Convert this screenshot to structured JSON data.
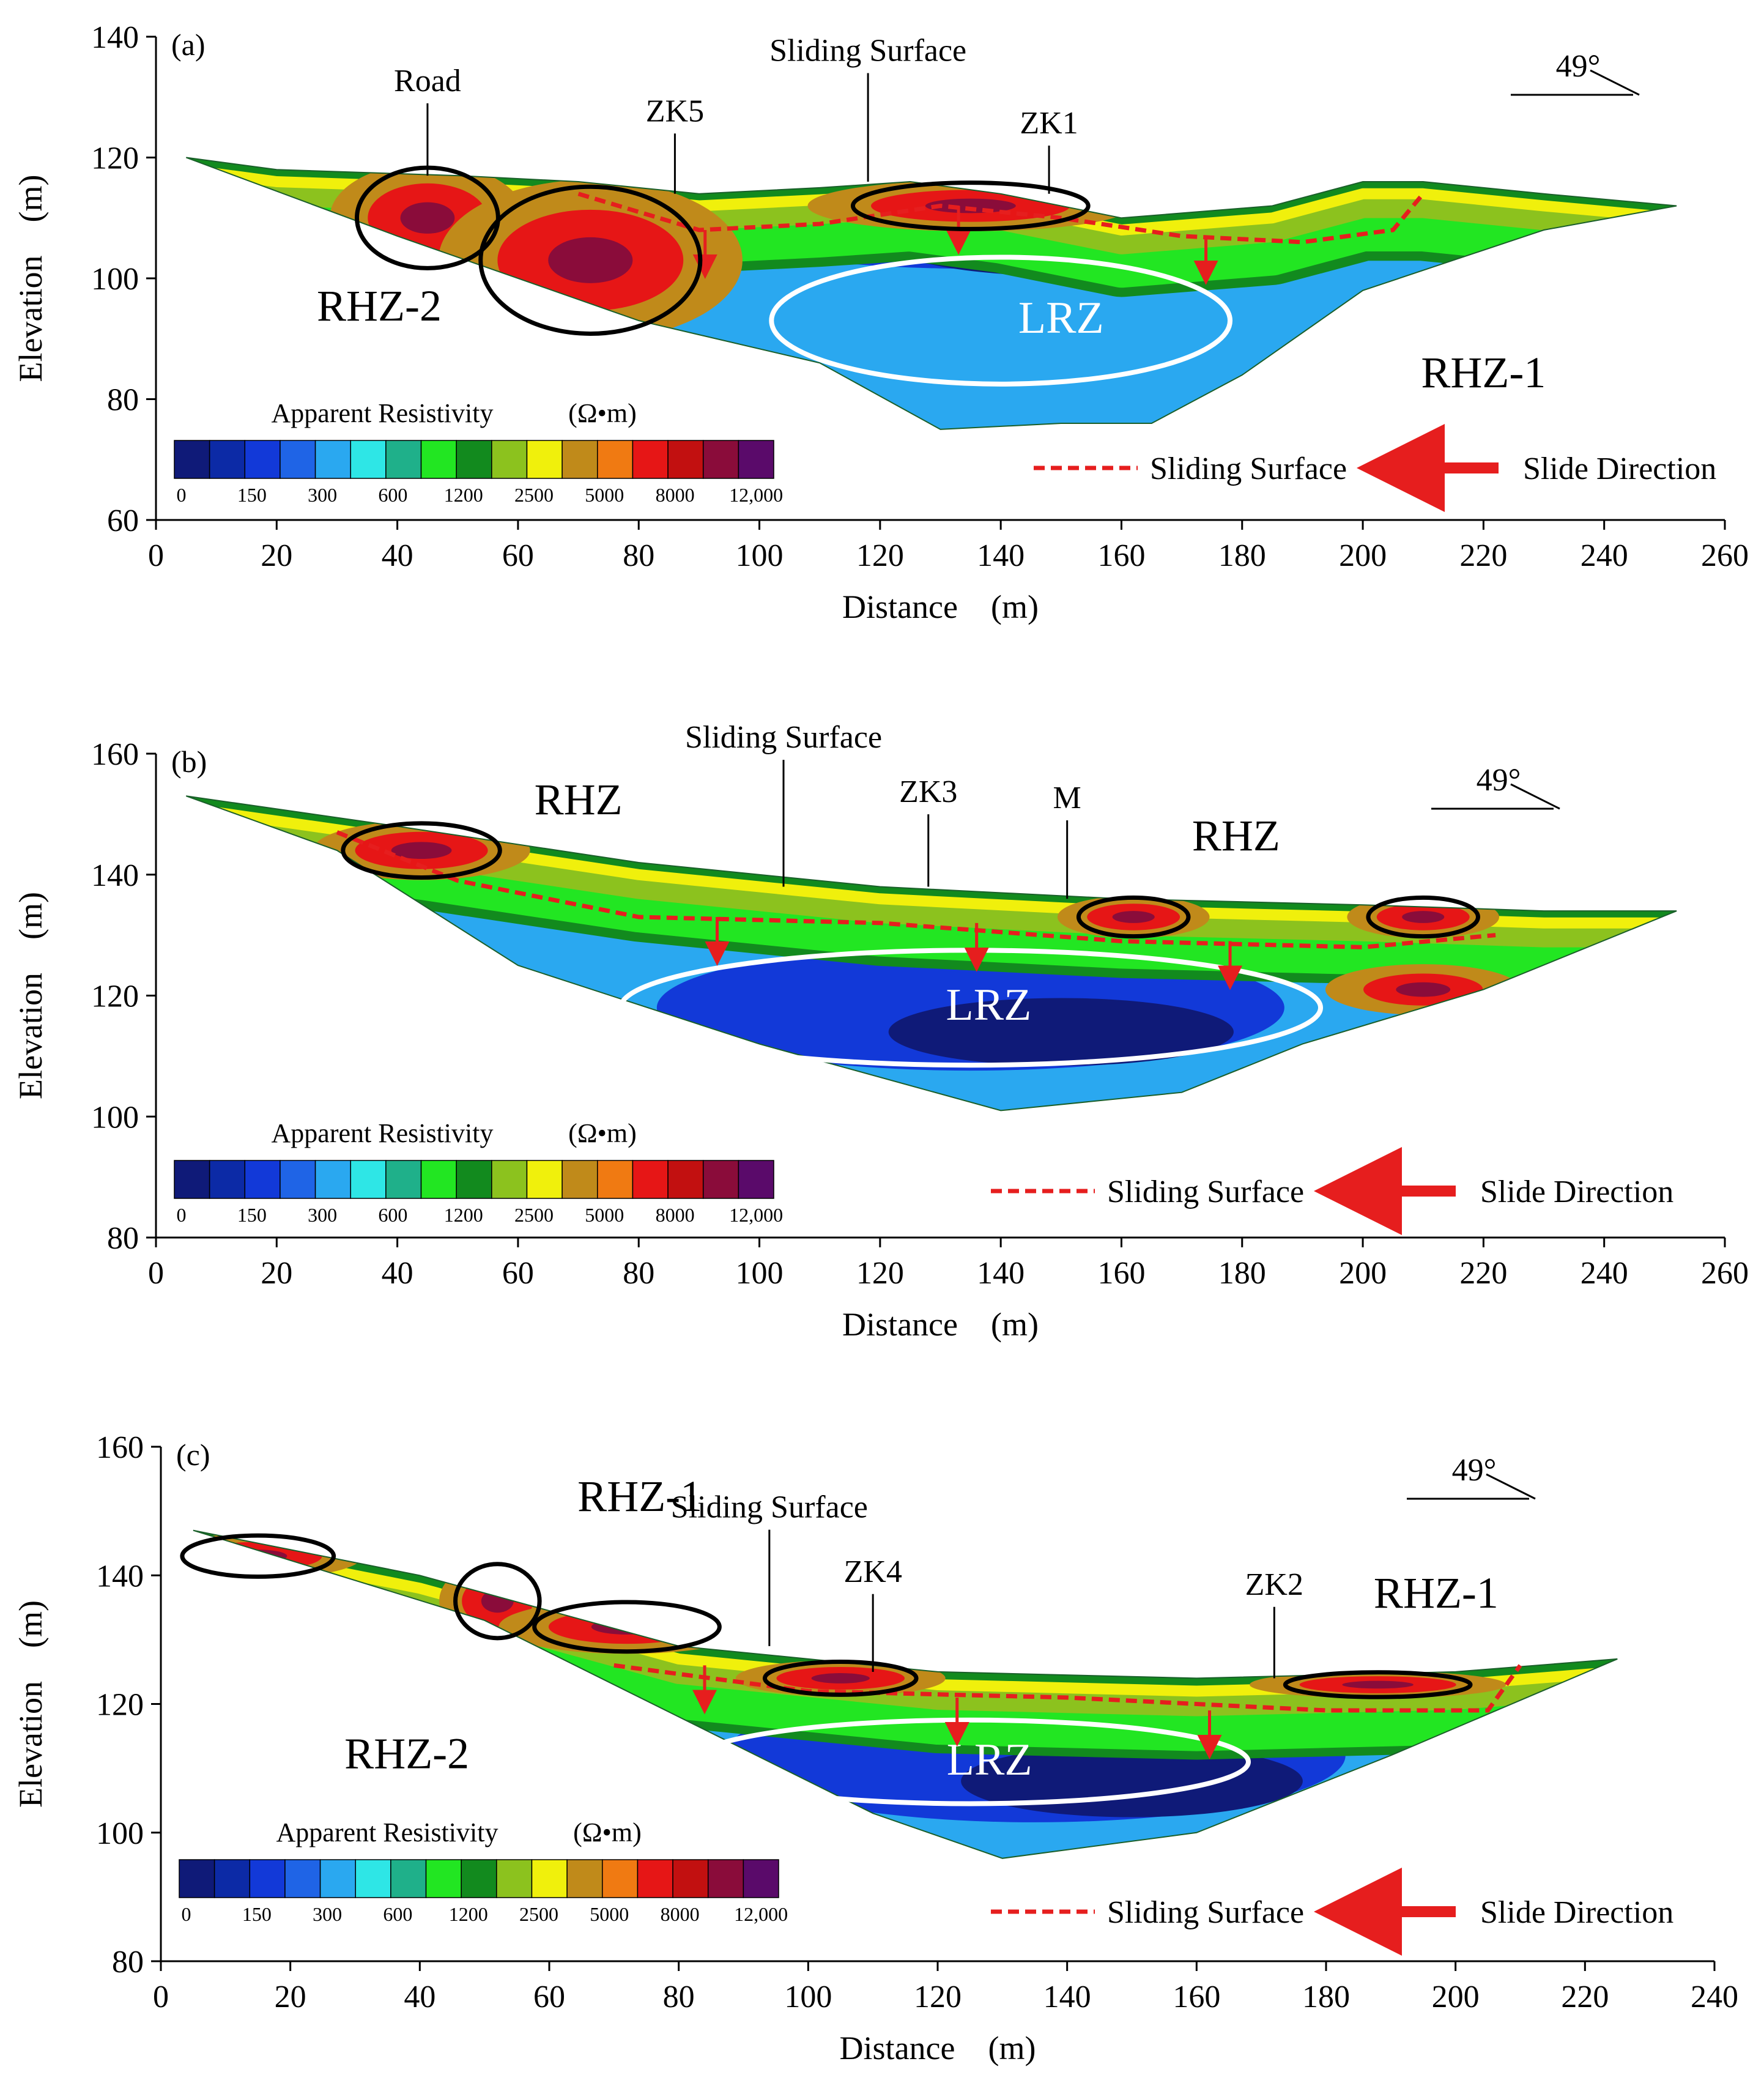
{
  "colors": {
    "scale": [
      "#0f1a78",
      "#0c2aa6",
      "#1239d8",
      "#1f64e6",
      "#2aa8f0",
      "#2ee6e6",
      "#1fb08a",
      "#22e622",
      "#128a1e",
      "#8cc21e",
      "#f0f00c",
      "#c08a1a",
      "#f07a12",
      "#e61616",
      "#c21010",
      "#8a0c3a",
      "#5a0a6a"
    ],
    "sliding": "#e61e1e",
    "lrz": "#ffffff",
    "rhz": "#000000"
  },
  "common": {
    "legend_title": "Apparent Resistivity",
    "legend_unit": "(Ω•m)",
    "legend_unit_b": "(Ω•m)",
    "legend_ticks": [
      "0",
      "150",
      "300",
      "600",
      "1200",
      "2500",
      "5000",
      "8000",
      "12,000"
    ],
    "sliding_surface_label": "Sliding Surface",
    "slide_direction_label": "Slide Direction",
    "lrz": "LRZ",
    "dip": "49°"
  },
  "chart_data": [
    {
      "type": "heatmap",
      "panel": "(a)",
      "xlabel": "Distance　(m)",
      "ylabel": "Elevation　(m)",
      "xlim": [
        0,
        260
      ],
      "ylim": [
        60,
        140
      ],
      "xticks": [
        "0",
        "20",
        "40",
        "60",
        "80",
        "100",
        "120",
        "140",
        "160",
        "180",
        "200",
        "220",
        "240",
        "260"
      ],
      "yticks": [
        "60",
        "80",
        "100",
        "120",
        "140"
      ],
      "surface": [
        [
          5,
          120
        ],
        [
          20,
          118
        ],
        [
          50,
          117
        ],
        [
          70,
          116
        ],
        [
          90,
          114
        ],
        [
          110,
          115
        ],
        [
          125,
          116
        ],
        [
          140,
          114
        ],
        [
          160,
          110
        ],
        [
          185,
          112
        ],
        [
          200,
          116
        ],
        [
          210,
          116
        ],
        [
          230,
          114
        ],
        [
          252,
          112
        ]
      ],
      "bottom": [
        [
          5,
          120
        ],
        [
          40,
          107
        ],
        [
          80,
          93
        ],
        [
          110,
          86
        ],
        [
          130,
          75
        ],
        [
          150,
          76
        ],
        [
          165,
          76
        ],
        [
          180,
          84
        ],
        [
          200,
          98
        ],
        [
          230,
          108
        ],
        [
          252,
          112
        ]
      ],
      "sliding_surface": [
        [
          70,
          114
        ],
        [
          90,
          108
        ],
        [
          110,
          109
        ],
        [
          130,
          112
        ],
        [
          150,
          110
        ],
        [
          170,
          107
        ],
        [
          190,
          106
        ],
        [
          205,
          108
        ],
        [
          210,
          114
        ]
      ],
      "annotations": [
        {
          "text": "Road",
          "x": 45,
          "y": 131
        },
        {
          "text": "ZK5",
          "x": 86,
          "y": 126
        },
        {
          "text": "Sliding Surface",
          "x": 118,
          "y": 136
        },
        {
          "text": "ZK1",
          "x": 148,
          "y": 124
        },
        {
          "text": "RHZ-2",
          "x": 37,
          "y": 93
        },
        {
          "text": "RHZ-1",
          "x": 220,
          "y": 82
        }
      ]
    },
    {
      "type": "heatmap",
      "panel": "(b)",
      "xlabel": "Distance　(m)",
      "ylabel": "Elevation　(m)",
      "xlim": [
        0,
        260
      ],
      "ylim": [
        80,
        160
      ],
      "xticks": [
        "0",
        "20",
        "40",
        "60",
        "80",
        "100",
        "120",
        "140",
        "160",
        "180",
        "200",
        "220",
        "240",
        "260"
      ],
      "yticks": [
        "80",
        "100",
        "120",
        "140",
        "160"
      ],
      "surface": [
        [
          5,
          153
        ],
        [
          40,
          148
        ],
        [
          80,
          142
        ],
        [
          120,
          138
        ],
        [
          160,
          136
        ],
        [
          200,
          135
        ],
        [
          230,
          134
        ],
        [
          252,
          134
        ]
      ],
      "bottom": [
        [
          5,
          153
        ],
        [
          30,
          144
        ],
        [
          60,
          125
        ],
        [
          100,
          112
        ],
        [
          140,
          101
        ],
        [
          170,
          104
        ],
        [
          190,
          112
        ],
        [
          220,
          121
        ],
        [
          252,
          134
        ]
      ],
      "sliding_surface": [
        [
          30,
          147
        ],
        [
          50,
          139
        ],
        [
          80,
          133
        ],
        [
          120,
          132
        ],
        [
          160,
          129
        ],
        [
          200,
          128
        ],
        [
          222,
          130
        ]
      ],
      "annotations": [
        {
          "text": "Sliding Surface",
          "x": 104,
          "y": 161
        },
        {
          "text": "ZK3",
          "x": 128,
          "y": 152
        },
        {
          "text": "M",
          "x": 151,
          "y": 151
        },
        {
          "text": "RHZ",
          "x": 70,
          "y": 150
        },
        {
          "text": "RHZ",
          "x": 179,
          "y": 144
        }
      ]
    },
    {
      "type": "heatmap",
      "panel": "(c)",
      "xlabel": "Distance　(m)",
      "ylabel": "Elevation　(m)",
      "xlim": [
        0,
        240
      ],
      "ylim": [
        80,
        160
      ],
      "xticks": [
        "0",
        "20",
        "40",
        "60",
        "80",
        "100",
        "120",
        "140",
        "160",
        "180",
        "200",
        "220",
        "240"
      ],
      "yticks": [
        "80",
        "100",
        "120",
        "140",
        "160"
      ],
      "surface": [
        [
          5,
          147
        ],
        [
          40,
          140
        ],
        [
          80,
          129
        ],
        [
          120,
          125
        ],
        [
          160,
          124
        ],
        [
          200,
          125
        ],
        [
          225,
          127
        ]
      ],
      "bottom": [
        [
          5,
          147
        ],
        [
          50,
          133
        ],
        [
          80,
          118
        ],
        [
          110,
          103
        ],
        [
          130,
          96
        ],
        [
          160,
          100
        ],
        [
          190,
          112
        ],
        [
          225,
          127
        ]
      ],
      "sliding_surface": [
        [
          70,
          126
        ],
        [
          100,
          122
        ],
        [
          140,
          121
        ],
        [
          180,
          119
        ],
        [
          205,
          119
        ],
        [
          210,
          126
        ]
      ],
      "annotations": [
        {
          "text": "RHZ-1",
          "x": 74,
          "y": 150
        },
        {
          "text": "Sliding Surface",
          "x": 94,
          "y": 149
        },
        {
          "text": "ZK4",
          "x": 110,
          "y": 139
        },
        {
          "text": "ZK2",
          "x": 172,
          "y": 137
        },
        {
          "text": "RHZ-1",
          "x": 197,
          "y": 135
        },
        {
          "text": "RHZ-2",
          "x": 38,
          "y": 110
        }
      ]
    }
  ]
}
